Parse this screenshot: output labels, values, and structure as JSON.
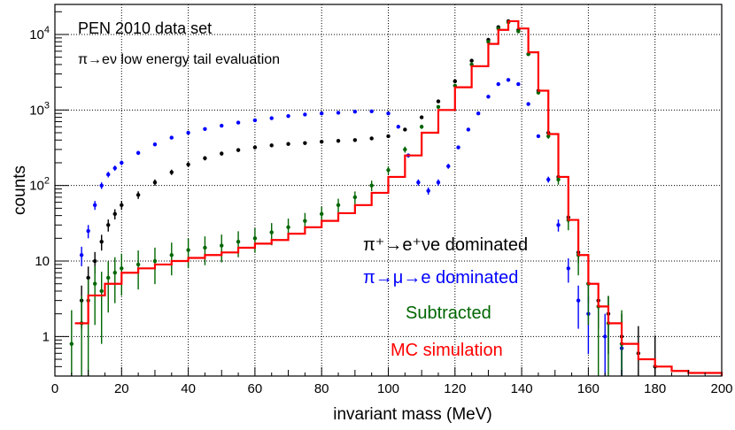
{
  "chart_data": {
    "type": "line",
    "title": "PEN 2010 data set",
    "subtitle": "π→eν low energy tail evaluation",
    "xlabel": "invariant mass (MeV)",
    "ylabel": "counts",
    "xlim": [
      0,
      200
    ],
    "ylim": [
      0.3,
      25000
    ],
    "yscale": "log",
    "grid": true,
    "x_ticks": [
      0,
      20,
      40,
      60,
      80,
      100,
      120,
      140,
      160,
      180,
      200
    ],
    "y_ticks": [
      {
        "value": 1,
        "label": "1"
      },
      {
        "value": 10,
        "label": "10"
      },
      {
        "value": 100,
        "label": "10^2"
      },
      {
        "value": 1000,
        "label": "10^3"
      },
      {
        "value": 10000,
        "label": "10^4"
      }
    ],
    "legend": [
      {
        "label": "π⁺→e⁺νe dominated",
        "color": "#000000"
      },
      {
        "label": "π→μ→e dominated",
        "color": "#0000ff"
      },
      {
        "label": "Subtracted",
        "color": "#006600"
      },
      {
        "label": "MC simulation",
        "color": "#ff0000"
      }
    ],
    "series": [
      {
        "name": "π⁺→e⁺νe dominated",
        "color": "#000000",
        "style": "points",
        "x": [
          8,
          10,
          12,
          14,
          16,
          18,
          20,
          25,
          30,
          35,
          40,
          45,
          50,
          55,
          60,
          65,
          70,
          75,
          80,
          85,
          90,
          95,
          100,
          105,
          110,
          115,
          120,
          125,
          130,
          133,
          136,
          139,
          142,
          145,
          148,
          151,
          154,
          157,
          160,
          163,
          166,
          170,
          175,
          180
        ],
        "y": [
          3,
          6,
          10,
          18,
          30,
          42,
          55,
          75,
          110,
          150,
          190,
          230,
          265,
          295,
          320,
          340,
          355,
          365,
          380,
          390,
          400,
          420,
          450,
          550,
          800,
          1300,
          2400,
          4500,
          8500,
          12500,
          15000,
          11500,
          5500,
          1800,
          500,
          130,
          38,
          13,
          5,
          3,
          2,
          1,
          0.6,
          0.4
        ]
      },
      {
        "name": "π→μ→e dominated",
        "color": "#0000ff",
        "style": "points",
        "x": [
          8,
          10,
          12,
          14,
          16,
          18,
          20,
          25,
          30,
          35,
          40,
          45,
          50,
          55,
          60,
          65,
          70,
          75,
          80,
          85,
          90,
          95,
          100,
          103,
          106,
          109,
          112,
          115,
          118,
          121,
          124,
          127,
          130,
          133,
          136,
          139,
          142,
          145,
          148,
          151,
          154,
          157,
          160,
          165,
          170
        ],
        "y": [
          12,
          25,
          55,
          100,
          140,
          170,
          200,
          270,
          350,
          430,
          500,
          560,
          620,
          680,
          730,
          780,
          830,
          870,
          900,
          920,
          950,
          960,
          900,
          600,
          250,
          110,
          85,
          110,
          180,
          320,
          550,
          900,
          1500,
          2200,
          2500,
          2200,
          1200,
          450,
          120,
          30,
          8,
          3,
          2,
          1,
          0.7
        ]
      },
      {
        "name": "Subtracted",
        "color": "#006600",
        "style": "points",
        "x": [
          5,
          8,
          10,
          12,
          14,
          16,
          18,
          20,
          25,
          30,
          35,
          40,
          45,
          50,
          55,
          60,
          65,
          70,
          75,
          80,
          85,
          90,
          95,
          100,
          105,
          110,
          115,
          120,
          125,
          130,
          133,
          136,
          139,
          142,
          145,
          148,
          151,
          154,
          157,
          160,
          163,
          166,
          170
        ],
        "y": [
          0.8,
          1.5,
          3,
          5,
          4,
          6,
          7,
          8,
          9,
          10,
          12,
          14,
          15,
          16,
          18,
          20,
          24,
          28,
          34,
          42,
          55,
          70,
          100,
          160,
          300,
          600,
          1100,
          2100,
          4000,
          8000,
          12000,
          14500,
          11000,
          5500,
          1700,
          450,
          120,
          35,
          12,
          5,
          2.5,
          1.5,
          0.8
        ]
      },
      {
        "name": "MC simulation",
        "color": "#ff0000",
        "style": "step",
        "x": [
          6,
          10,
          15,
          20,
          25,
          30,
          35,
          40,
          45,
          50,
          55,
          60,
          65,
          70,
          75,
          80,
          85,
          90,
          95,
          100,
          105,
          110,
          115,
          120,
          125,
          130,
          133,
          136,
          139,
          142,
          145,
          148,
          151,
          154,
          157,
          160,
          163,
          166,
          170,
          175,
          180,
          185,
          190,
          200
        ],
        "y": [
          1.5,
          3.5,
          5,
          7,
          8,
          9,
          10,
          11,
          12,
          13,
          15,
          17,
          19,
          23,
          28,
          34,
          43,
          55,
          80,
          130,
          250,
          500,
          1000,
          2000,
          3800,
          7500,
          11500,
          15000,
          12000,
          5800,
          1800,
          480,
          130,
          35,
          12,
          5,
          2.5,
          1.5,
          0.8,
          0.5,
          0.4,
          0.35,
          0.33,
          0.3
        ]
      }
    ]
  }
}
